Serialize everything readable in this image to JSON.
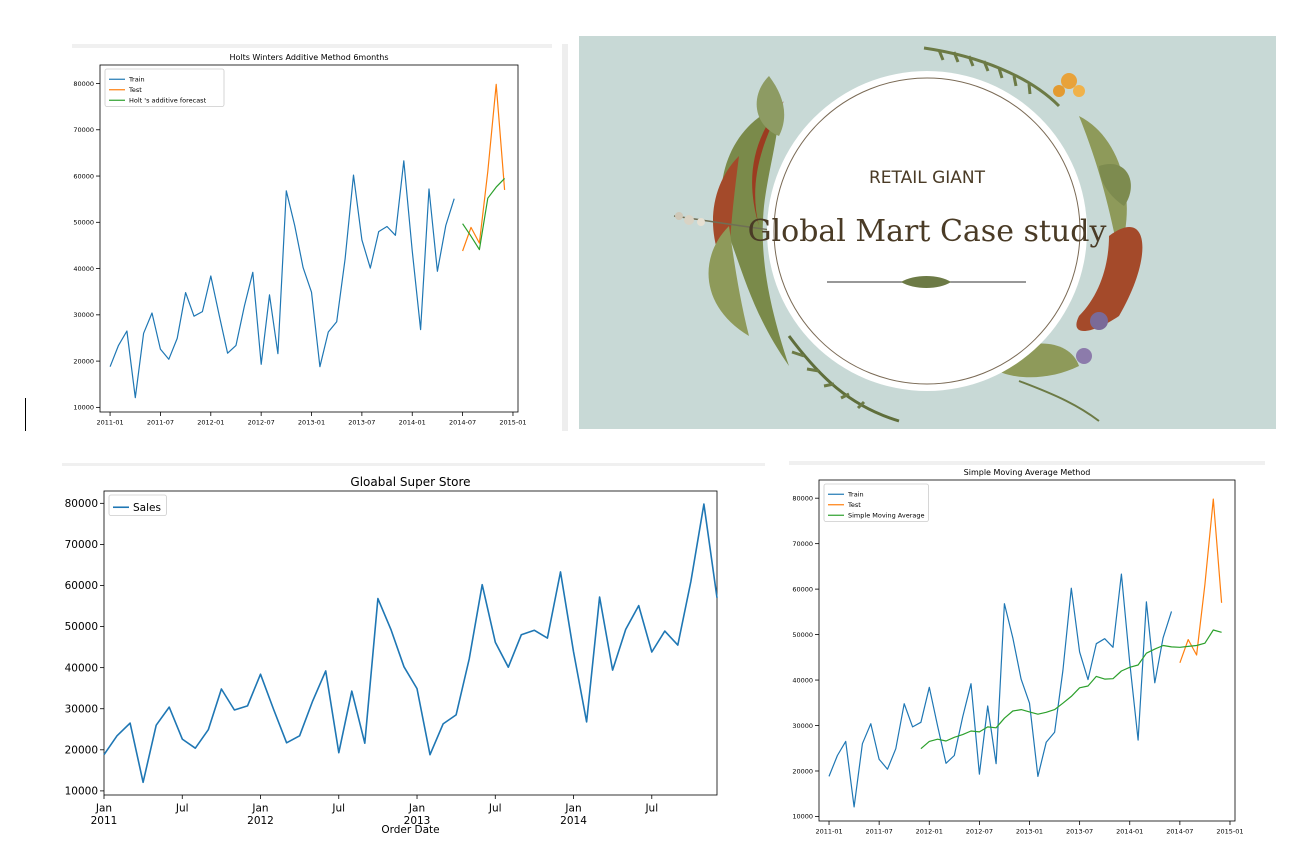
{
  "colors": {
    "train": "#1f77b4",
    "test": "#ff7f0e",
    "forecast": "#2ca02c",
    "hero_bg": "#c8d9d6",
    "hero_text": "#4a3b26"
  },
  "hero": {
    "kicker": "RETAIL GIANT",
    "title": "Global Mart Case study"
  },
  "chart_data": [
    {
      "id": "holts",
      "type": "line",
      "title": "Holts Winters Additive Method 6months",
      "xlabel": "",
      "ylabel": "",
      "xlim": [
        2010.9,
        2015.05
      ],
      "ylim": [
        9000,
        84000
      ],
      "yticks": [
        10000,
        20000,
        30000,
        40000,
        50000,
        60000,
        70000,
        80000
      ],
      "xticks": [
        {
          "v": 2011.0,
          "label": "2011-01"
        },
        {
          "v": 2011.5,
          "label": "2011-07"
        },
        {
          "v": 2012.0,
          "label": "2012-01"
        },
        {
          "v": 2012.5,
          "label": "2012-07"
        },
        {
          "v": 2013.0,
          "label": "2013-01"
        },
        {
          "v": 2013.5,
          "label": "2013-07"
        },
        {
          "v": 2014.0,
          "label": "2014-01"
        },
        {
          "v": 2014.5,
          "label": "2014-07"
        },
        {
          "v": 2015.0,
          "label": "2015-01"
        }
      ],
      "legend_position": "top-left",
      "series": [
        {
          "name": "Train",
          "color_key": "train",
          "start": 2011.0,
          "step": 0.08333,
          "values": [
            18800,
            23400,
            26500,
            12100,
            26000,
            30400,
            22600,
            20400,
            24900,
            34800,
            29700,
            30700,
            38400,
            29900,
            21700,
            23400,
            31900,
            39200,
            19300,
            34300,
            21600,
            56800,
            49300,
            40200,
            34900,
            18800,
            26300,
            28500,
            42100,
            60200,
            46200,
            40100,
            48000,
            49100,
            47200,
            63300,
            43900,
            26800,
            57200,
            39400,
            49300,
            55100
          ]
        },
        {
          "name": "Test",
          "color_key": "test",
          "start": 2014.5,
          "step": 0.08333,
          "values": [
            43800,
            48900,
            45500,
            61000,
            79800,
            57000
          ]
        },
        {
          "name": "Holt 's additive forecast",
          "color_key": "forecast",
          "start": 2014.5,
          "step": 0.08333,
          "values": [
            49700,
            47000,
            44100,
            55200,
            57600,
            59500
          ]
        }
      ]
    },
    {
      "id": "super",
      "type": "line",
      "title": "Gloabal Super Store",
      "xlabel": "Order Date",
      "ylabel": "",
      "xlim": [
        2011.0,
        2014.9167
      ],
      "ylim": [
        9000,
        83000
      ],
      "yticks": [
        10000,
        20000,
        30000,
        40000,
        50000,
        60000,
        70000,
        80000
      ],
      "xticks": [
        {
          "v": 2011.0,
          "label": "Jan",
          "sub": "2011"
        },
        {
          "v": 2011.5,
          "label": "Jul",
          "sub": ""
        },
        {
          "v": 2012.0,
          "label": "Jan",
          "sub": "2012"
        },
        {
          "v": 2012.5,
          "label": "Jul",
          "sub": ""
        },
        {
          "v": 2013.0,
          "label": "Jan",
          "sub": "2013"
        },
        {
          "v": 2013.5,
          "label": "Jul",
          "sub": ""
        },
        {
          "v": 2014.0,
          "label": "Jan",
          "sub": "2014"
        },
        {
          "v": 2014.5,
          "label": "Jul",
          "sub": ""
        }
      ],
      "legend_position": "top-left",
      "series": [
        {
          "name": "Sales",
          "color_key": "train",
          "start": 2011.0,
          "step": 0.08333,
          "values": [
            18800,
            23400,
            26500,
            12100,
            26000,
            30400,
            22600,
            20400,
            24900,
            34800,
            29700,
            30700,
            38400,
            29900,
            21700,
            23400,
            31900,
            39200,
            19300,
            34300,
            21600,
            56800,
            49300,
            40200,
            34900,
            18800,
            26300,
            28500,
            42100,
            60200,
            46200,
            40100,
            48000,
            49100,
            47200,
            63300,
            43900,
            26800,
            57200,
            39400,
            49300,
            55100,
            43800,
            48900,
            45500,
            61000,
            79800,
            57000
          ]
        }
      ]
    },
    {
      "id": "sma",
      "type": "line",
      "title": "Simple Moving Average Method",
      "xlabel": "",
      "ylabel": "",
      "xlim": [
        2010.9,
        2015.05
      ],
      "ylim": [
        9000,
        84000
      ],
      "yticks": [
        10000,
        20000,
        30000,
        40000,
        50000,
        60000,
        70000,
        80000
      ],
      "xticks": [
        {
          "v": 2011.0,
          "label": "2011-01"
        },
        {
          "v": 2011.5,
          "label": "2011-07"
        },
        {
          "v": 2012.0,
          "label": "2012-01"
        },
        {
          "v": 2012.5,
          "label": "2012-07"
        },
        {
          "v": 2013.0,
          "label": "2013-01"
        },
        {
          "v": 2013.5,
          "label": "2013-07"
        },
        {
          "v": 2014.0,
          "label": "2014-01"
        },
        {
          "v": 2014.5,
          "label": "2014-07"
        },
        {
          "v": 2015.0,
          "label": "2015-01"
        }
      ],
      "legend_position": "top-left",
      "series": [
        {
          "name": "Train",
          "color_key": "train",
          "start": 2011.0,
          "step": 0.08333,
          "values": [
            18800,
            23400,
            26500,
            12100,
            26000,
            30400,
            22600,
            20400,
            24900,
            34800,
            29700,
            30700,
            38400,
            29900,
            21700,
            23400,
            31900,
            39200,
            19300,
            34300,
            21600,
            56800,
            49300,
            40200,
            34900,
            18800,
            26300,
            28500,
            42100,
            60200,
            46200,
            40100,
            48000,
            49100,
            47200,
            63300,
            43900,
            26800,
            57200,
            39400,
            49300,
            55100
          ]
        },
        {
          "name": "Test",
          "color_key": "test",
          "start": 2014.5,
          "step": 0.08333,
          "values": [
            43800,
            48900,
            45500,
            61000,
            79800,
            57000
          ]
        },
        {
          "name": "Simple Moving Average",
          "color_key": "forecast",
          "start": 2011.9167,
          "step": 0.08333,
          "values": [
            24900,
            26500,
            27000,
            26600,
            27400,
            28000,
            28800,
            28600,
            29700,
            29500,
            31600,
            33200,
            33500,
            33000,
            32500,
            32900,
            33500,
            34900,
            36400,
            38300,
            38700,
            40800,
            40200,
            40300,
            42000,
            42800,
            43300,
            45900,
            46800,
            47600,
            47300,
            47200,
            47400,
            47600,
            48100,
            51000,
            50500
          ]
        }
      ]
    }
  ]
}
